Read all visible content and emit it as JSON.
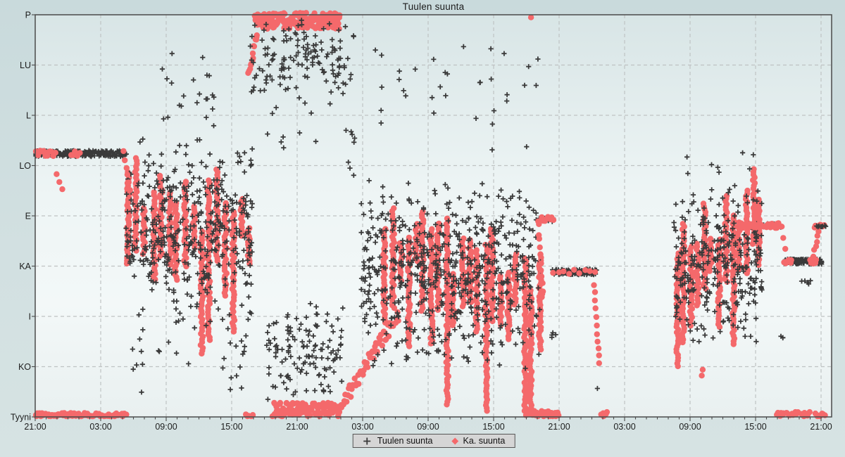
{
  "title": "Tuulen suunta",
  "legend": {
    "items": [
      {
        "label": "Tuulen suunta",
        "marker": "plus-icon"
      },
      {
        "label": "Ka. suunta",
        "marker": "diamond-icon"
      }
    ]
  },
  "colors": {
    "wind_points": "#3a3a3a",
    "avg_points": "#f4696b",
    "grid": "#bfc3c3",
    "border": "#4a4a4a",
    "text": "#1c1c1c",
    "legend_bg": "#d5d5d5",
    "plot_bg_top": "#d8e5e6",
    "plot_bg_mid": "#f3f8f8",
    "plot_bg_bottom": "#e9f0f0"
  },
  "axes": {
    "y_labels": [
      {
        "label": "P",
        "v": 8
      },
      {
        "label": "LU",
        "v": 7
      },
      {
        "label": "L",
        "v": 6
      },
      {
        "label": "LO",
        "v": 5
      },
      {
        "label": "E",
        "v": 4
      },
      {
        "label": "KA",
        "v": 3
      },
      {
        "label": "I",
        "v": 2
      },
      {
        "label": "KO",
        "v": 1
      },
      {
        "label": "Tyyni",
        "v": 0
      }
    ],
    "x_labels": [
      {
        "label": "21:00",
        "t": 0
      },
      {
        "label": "03:00",
        "t": 6
      },
      {
        "label": "09:00",
        "t": 12
      },
      {
        "label": "15:00",
        "t": 18
      },
      {
        "label": "21:00",
        "t": 24
      },
      {
        "label": "03:00",
        "t": 30
      },
      {
        "label": "09:00",
        "t": 36
      },
      {
        "label": "15:00",
        "t": 42
      },
      {
        "label": "21:00",
        "t": 48
      },
      {
        "label": "03:00",
        "t": 54
      },
      {
        "label": "09:00",
        "t": 60
      },
      {
        "label": "15:00",
        "t": 66
      },
      {
        "label": "21:00",
        "t": 72
      }
    ],
    "minor_tick_hours": 1
  },
  "chart_data": {
    "type": "scatter",
    "title": "Tuulen suunta",
    "x_axis": "time, 72 hours (3 days), major ticks every 6 h from 21:00 to 21:00",
    "y_axis": "wind direction category",
    "y_categories_top_to_bottom": [
      "P",
      "LU",
      "L",
      "LO",
      "E",
      "KA",
      "I",
      "KO",
      "Tyyni"
    ],
    "direction_value_map": {
      "Tyyni": 0,
      "KO": 1,
      "I": 2,
      "KA": 3,
      "E": 4,
      "LO": 5,
      "L": 6,
      "LU": 7,
      "P": 8
    },
    "series": [
      {
        "name": "Tuulen suunta",
        "marker": "plus",
        "color": "#3a3a3a"
      },
      {
        "name": "Ka. suunta",
        "marker": "dot",
        "color": "#f4696b"
      }
    ],
    "legend_position": "bottom-center",
    "grid": "dashed",
    "groups": [
      {
        "s": 1,
        "p": "streaks",
        "t": [
          8.6,
          19.6
        ],
        "c": [
          3.9,
          3.5
        ],
        "amp": 0.75,
        "deep": 0.18,
        "n": 16
      },
      {
        "s": 0,
        "p": "scatter",
        "t": [
          8.3,
          19.9
        ],
        "v": [
          1.7,
          5.6
        ],
        "n": 430
      },
      {
        "s": 0,
        "p": "scatter",
        "t": [
          8.8,
          19.5
        ],
        "v": [
          0.4,
          1.8
        ],
        "n": 26
      },
      {
        "s": 0,
        "p": "scatter",
        "t": [
          11.3,
          17.2
        ],
        "v": [
          5.8,
          7.4
        ],
        "n": 14
      },
      {
        "s": 0,
        "p": "scatter",
        "t": [
          15.6,
          16.6
        ],
        "v": [
          5.6,
          7.1
        ],
        "n": 7
      },
      {
        "s": 0,
        "p": "scatter",
        "t": [
          12.3,
          12.6
        ],
        "v": [
          7.1,
          7.35
        ],
        "n": 1
      },
      {
        "s": 0,
        "p": "band",
        "t": [
          0,
          8.3
        ],
        "v": [
          5.18,
          5.3
        ],
        "n": 200
      },
      {
        "s": 1,
        "p": "band",
        "t": [
          0.05,
          1.85
        ],
        "v": [
          5.19,
          5.31
        ],
        "n": 16
      },
      {
        "s": 1,
        "p": "path",
        "t": [
          2.0,
          2.45
        ],
        "v": [
          4.85,
          4.5
        ],
        "n": 3
      },
      {
        "s": 1,
        "p": "band",
        "t": [
          3.35,
          4.05
        ],
        "v": [
          5.19,
          5.31
        ],
        "n": 6
      },
      {
        "s": 1,
        "p": "path",
        "t": [
          8.1,
          8.7
        ],
        "v": [
          5.25,
          4.55
        ],
        "n": 6
      },
      {
        "s": 1,
        "p": "band",
        "t": [
          0,
          8.3
        ],
        "v": [
          0.0,
          0.08
        ],
        "n": 70
      },
      {
        "s": 1,
        "p": "band",
        "t": [
          19.3,
          19.9
        ],
        "v": [
          0.0,
          0.07
        ],
        "n": 5
      },
      {
        "s": 1,
        "p": "path",
        "t": [
          19.55,
          20.35
        ],
        "v": [
          6.8,
          7.65
        ],
        "n": 14,
        "w": 0.12
      },
      {
        "s": 1,
        "p": "band",
        "t": [
          20.1,
          27.9
        ],
        "v": [
          7.72,
          8.04
        ],
        "n": 170
      },
      {
        "s": 0,
        "p": "scatter",
        "t": [
          19.7,
          29.3
        ],
        "v": [
          6.3,
          8.0
        ],
        "n": 140
      },
      {
        "s": 0,
        "p": "scatter",
        "t": [
          21.0,
          29.3
        ],
        "v": [
          5.1,
          6.3
        ],
        "n": 14
      },
      {
        "s": 0,
        "p": "scatter",
        "t": [
          28.1,
          29.2
        ],
        "v": [
          3.6,
          6.2
        ],
        "n": 5
      },
      {
        "s": 1,
        "p": "band",
        "t": [
          21.8,
          27.8
        ],
        "v": [
          0.0,
          0.28
        ],
        "n": 110
      },
      {
        "s": 1,
        "p": "path",
        "t": [
          27.8,
          33.3
        ],
        "v": [
          0.15,
          2.05
        ],
        "n": 60,
        "w": 0.28
      },
      {
        "s": 0,
        "p": "scatter",
        "t": [
          21.2,
          28.2
        ],
        "v": [
          0.3,
          2.3
        ],
        "n": 130
      },
      {
        "s": 1,
        "p": "streaks",
        "t": [
          32.0,
          46.2
        ],
        "c": [
          3.3,
          2.2
        ],
        "amp": 0.9,
        "deep": 0.3,
        "n": 21
      },
      {
        "s": 0,
        "p": "scatter",
        "t": [
          29.8,
          46.3
        ],
        "v": [
          0.9,
          4.7
        ],
        "n": 620
      },
      {
        "s": 0,
        "p": "scatter",
        "t": [
          30.8,
          46.2
        ],
        "v": [
          5.3,
          7.9
        ],
        "n": 34
      },
      {
        "s": 1,
        "p": "scatter",
        "t": [
          45.2,
          45.45
        ],
        "v": [
          7.9,
          8.0
        ],
        "n": 1
      },
      {
        "s": 0,
        "p": "band",
        "t": [
          46.2,
          47.45
        ],
        "v": [
          3.88,
          3.97
        ],
        "n": 14
      },
      {
        "s": 1,
        "p": "band",
        "t": [
          46.1,
          47.5
        ],
        "v": [
          3.88,
          3.98
        ],
        "n": 12
      },
      {
        "s": 1,
        "p": "path",
        "t": [
          46.15,
          46.5
        ],
        "v": [
          3.8,
          2.5
        ],
        "n": 10
      },
      {
        "s": 1,
        "p": "scatter",
        "t": [
          46.2,
          46.6
        ],
        "v": [
          2.1,
          2.6
        ],
        "n": 4
      },
      {
        "s": 0,
        "p": "band",
        "t": [
          47.4,
          51.4
        ],
        "v": [
          2.83,
          2.94
        ],
        "n": 130
      },
      {
        "s": 1,
        "p": "band",
        "t": [
          47.45,
          51.35
        ],
        "v": [
          2.84,
          2.93
        ],
        "n": 9
      },
      {
        "s": 1,
        "p": "path",
        "t": [
          51.2,
          51.7
        ],
        "v": [
          2.6,
          1.05
        ],
        "n": 11
      },
      {
        "s": 0,
        "p": "scatter",
        "t": [
          47.3,
          47.8
        ],
        "v": [
          1.5,
          2.0
        ],
        "n": 4
      },
      {
        "s": 0,
        "p": "scatter",
        "t": [
          51.3,
          51.6
        ],
        "v": [
          0.45,
          0.6
        ],
        "n": 1
      },
      {
        "s": 1,
        "p": "band",
        "t": [
          45.0,
          47.9
        ],
        "v": [
          0.0,
          0.12
        ],
        "n": 34
      },
      {
        "s": 1,
        "p": "band",
        "t": [
          51.9,
          52.4
        ],
        "v": [
          0.0,
          0.1
        ],
        "n": 6
      },
      {
        "s": 1,
        "p": "streaks",
        "t": [
          58.8,
          66.4
        ],
        "c": [
          2.6,
          3.9
        ],
        "amp": 0.8,
        "deep": 0.25,
        "n": 13
      },
      {
        "s": 0,
        "p": "scatter",
        "t": [
          58.5,
          66.6
        ],
        "v": [
          1.5,
          4.6
        ],
        "n": 310
      },
      {
        "s": 0,
        "p": "scatter",
        "t": [
          59.0,
          66.2
        ],
        "v": [
          4.4,
          5.3
        ],
        "n": 10
      },
      {
        "s": 0,
        "p": "scatter",
        "t": [
          68.2,
          68.6
        ],
        "v": [
          1.5,
          1.65
        ],
        "n": 3
      },
      {
        "s": 0,
        "p": "scatter",
        "t": [
          70.0,
          71.3
        ],
        "v": [
          2.6,
          2.8
        ],
        "n": 5
      },
      {
        "s": 1,
        "p": "scatter",
        "t": [
          60.8,
          61.3
        ],
        "v": [
          0.8,
          1.0
        ],
        "n": 2
      },
      {
        "s": 0,
        "p": "band",
        "t": [
          65.0,
          68.3
        ],
        "v": [
          3.77,
          3.85
        ],
        "n": 12
      },
      {
        "s": 1,
        "p": "band",
        "t": [
          64.6,
          68.4
        ],
        "v": [
          3.76,
          3.86
        ],
        "n": 38
      },
      {
        "s": 1,
        "p": "path",
        "t": [
          68.5,
          68.75
        ],
        "v": [
          3.6,
          3.35
        ],
        "n": 2
      },
      {
        "s": 0,
        "p": "band",
        "t": [
          68.6,
          72.1
        ],
        "v": [
          3.04,
          3.14
        ],
        "n": 95
      },
      {
        "s": 1,
        "p": "band",
        "t": [
          68.6,
          69.3
        ],
        "v": [
          3.05,
          3.13
        ],
        "n": 7
      },
      {
        "s": 1,
        "p": "band",
        "t": [
          71.0,
          71.6
        ],
        "v": [
          3.05,
          3.13
        ],
        "n": 5
      },
      {
        "s": 1,
        "p": "path",
        "t": [
          71.2,
          71.9
        ],
        "v": [
          3.12,
          3.8
        ],
        "n": 8,
        "w": 0.1
      },
      {
        "s": 1,
        "p": "band",
        "t": [
          71.4,
          72.3
        ],
        "v": [
          3.76,
          3.84
        ],
        "n": 8
      },
      {
        "s": 0,
        "p": "band",
        "t": [
          71.6,
          72.4
        ],
        "v": [
          3.76,
          3.85
        ],
        "n": 8
      },
      {
        "s": 1,
        "p": "band",
        "t": [
          67.9,
          68.6
        ],
        "v": [
          0.0,
          0.1
        ],
        "n": 8
      },
      {
        "s": 1,
        "p": "band",
        "t": [
          68.8,
          69.9
        ],
        "v": [
          0.0,
          0.1
        ],
        "n": 10
      },
      {
        "s": 1,
        "p": "band",
        "t": [
          70.2,
          71.0
        ],
        "v": [
          0.0,
          0.1
        ],
        "n": 8
      },
      {
        "s": 1,
        "p": "band",
        "t": [
          71.5,
          72.3
        ],
        "v": [
          0.0,
          0.1
        ],
        "n": 8
      }
    ]
  }
}
